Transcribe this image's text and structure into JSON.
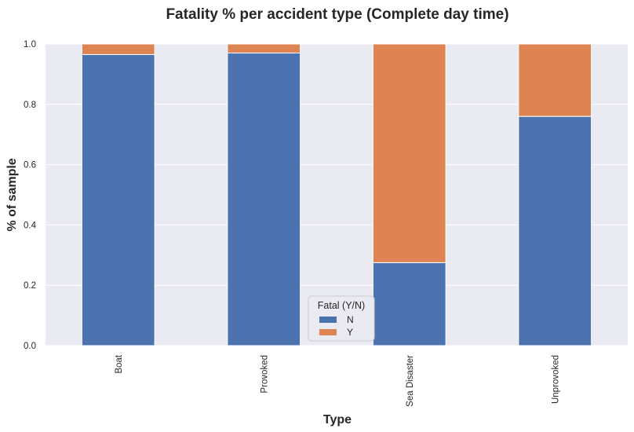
{
  "chart_data": {
    "type": "bar",
    "stacked": true,
    "title": "Fatality % per accident type (Complete day time)",
    "xlabel": "Type",
    "ylabel": "% of sample",
    "categories": [
      "Boat",
      "Provoked",
      "Sea Disaster",
      "Unprovoked"
    ],
    "series": [
      {
        "name": "N",
        "values": [
          0.965,
          0.97,
          0.275,
          0.76
        ],
        "color": "#4c72b0"
      },
      {
        "name": "Y",
        "values": [
          0.035,
          0.03,
          0.725,
          0.24
        ],
        "color": "#dd8452"
      }
    ],
    "ylim": [
      0,
      1.0
    ],
    "yticks": [
      "0.0",
      "0.2",
      "0.4",
      "0.6",
      "0.8",
      "1.0"
    ],
    "grid": true,
    "legend": {
      "title": "Fatal (Y/N)",
      "placement": "bottom-center"
    },
    "colors": {
      "background": "#eaeaf2",
      "grid": "#ffffff"
    }
  }
}
